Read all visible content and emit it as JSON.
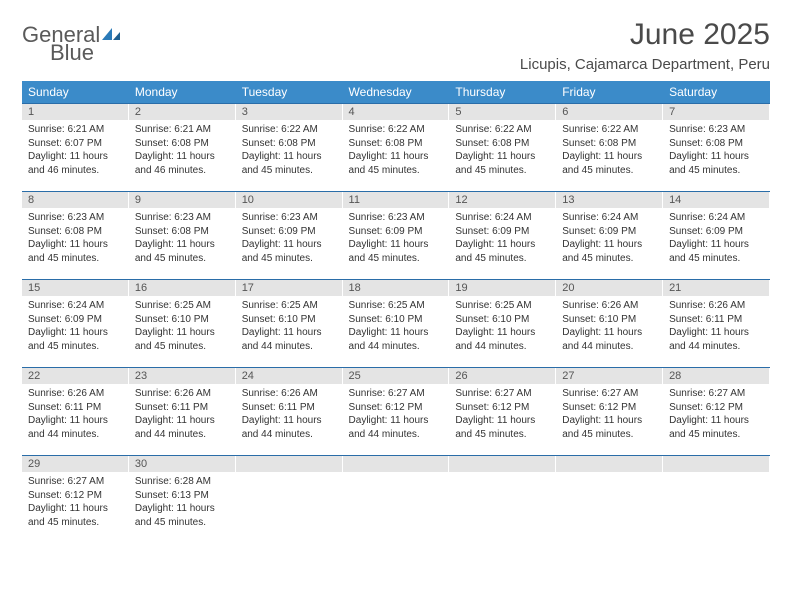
{
  "logo": {
    "text1": "General",
    "text2": "Blue"
  },
  "title": "June 2025",
  "subtitle": "Licupis, Cajamarca Department, Peru",
  "header_bg": "#3b8bc9",
  "daynum_bg": "#e4e4e4",
  "week_border": "#2a6da8",
  "weekdays": [
    "Sunday",
    "Monday",
    "Tuesday",
    "Wednesday",
    "Thursday",
    "Friday",
    "Saturday"
  ],
  "days": [
    {
      "n": "1",
      "sr": "6:21 AM",
      "ss": "6:07 PM",
      "dl": "11 hours and 46 minutes."
    },
    {
      "n": "2",
      "sr": "6:21 AM",
      "ss": "6:08 PM",
      "dl": "11 hours and 46 minutes."
    },
    {
      "n": "3",
      "sr": "6:22 AM",
      "ss": "6:08 PM",
      "dl": "11 hours and 45 minutes."
    },
    {
      "n": "4",
      "sr": "6:22 AM",
      "ss": "6:08 PM",
      "dl": "11 hours and 45 minutes."
    },
    {
      "n": "5",
      "sr": "6:22 AM",
      "ss": "6:08 PM",
      "dl": "11 hours and 45 minutes."
    },
    {
      "n": "6",
      "sr": "6:22 AM",
      "ss": "6:08 PM",
      "dl": "11 hours and 45 minutes."
    },
    {
      "n": "7",
      "sr": "6:23 AM",
      "ss": "6:08 PM",
      "dl": "11 hours and 45 minutes."
    },
    {
      "n": "8",
      "sr": "6:23 AM",
      "ss": "6:08 PM",
      "dl": "11 hours and 45 minutes."
    },
    {
      "n": "9",
      "sr": "6:23 AM",
      "ss": "6:08 PM",
      "dl": "11 hours and 45 minutes."
    },
    {
      "n": "10",
      "sr": "6:23 AM",
      "ss": "6:09 PM",
      "dl": "11 hours and 45 minutes."
    },
    {
      "n": "11",
      "sr": "6:23 AM",
      "ss": "6:09 PM",
      "dl": "11 hours and 45 minutes."
    },
    {
      "n": "12",
      "sr": "6:24 AM",
      "ss": "6:09 PM",
      "dl": "11 hours and 45 minutes."
    },
    {
      "n": "13",
      "sr": "6:24 AM",
      "ss": "6:09 PM",
      "dl": "11 hours and 45 minutes."
    },
    {
      "n": "14",
      "sr": "6:24 AM",
      "ss": "6:09 PM",
      "dl": "11 hours and 45 minutes."
    },
    {
      "n": "15",
      "sr": "6:24 AM",
      "ss": "6:09 PM",
      "dl": "11 hours and 45 minutes."
    },
    {
      "n": "16",
      "sr": "6:25 AM",
      "ss": "6:10 PM",
      "dl": "11 hours and 45 minutes."
    },
    {
      "n": "17",
      "sr": "6:25 AM",
      "ss": "6:10 PM",
      "dl": "11 hours and 44 minutes."
    },
    {
      "n": "18",
      "sr": "6:25 AM",
      "ss": "6:10 PM",
      "dl": "11 hours and 44 minutes."
    },
    {
      "n": "19",
      "sr": "6:25 AM",
      "ss": "6:10 PM",
      "dl": "11 hours and 44 minutes."
    },
    {
      "n": "20",
      "sr": "6:26 AM",
      "ss": "6:10 PM",
      "dl": "11 hours and 44 minutes."
    },
    {
      "n": "21",
      "sr": "6:26 AM",
      "ss": "6:11 PM",
      "dl": "11 hours and 44 minutes."
    },
    {
      "n": "22",
      "sr": "6:26 AM",
      "ss": "6:11 PM",
      "dl": "11 hours and 44 minutes."
    },
    {
      "n": "23",
      "sr": "6:26 AM",
      "ss": "6:11 PM",
      "dl": "11 hours and 44 minutes."
    },
    {
      "n": "24",
      "sr": "6:26 AM",
      "ss": "6:11 PM",
      "dl": "11 hours and 44 minutes."
    },
    {
      "n": "25",
      "sr": "6:27 AM",
      "ss": "6:12 PM",
      "dl": "11 hours and 44 minutes."
    },
    {
      "n": "26",
      "sr": "6:27 AM",
      "ss": "6:12 PM",
      "dl": "11 hours and 45 minutes."
    },
    {
      "n": "27",
      "sr": "6:27 AM",
      "ss": "6:12 PM",
      "dl": "11 hours and 45 minutes."
    },
    {
      "n": "28",
      "sr": "6:27 AM",
      "ss": "6:12 PM",
      "dl": "11 hours and 45 minutes."
    },
    {
      "n": "29",
      "sr": "6:27 AM",
      "ss": "6:12 PM",
      "dl": "11 hours and 45 minutes."
    },
    {
      "n": "30",
      "sr": "6:28 AM",
      "ss": "6:13 PM",
      "dl": "11 hours and 45 minutes."
    }
  ],
  "labels": {
    "sunrise": "Sunrise:",
    "sunset": "Sunset:",
    "daylight": "Daylight:"
  }
}
